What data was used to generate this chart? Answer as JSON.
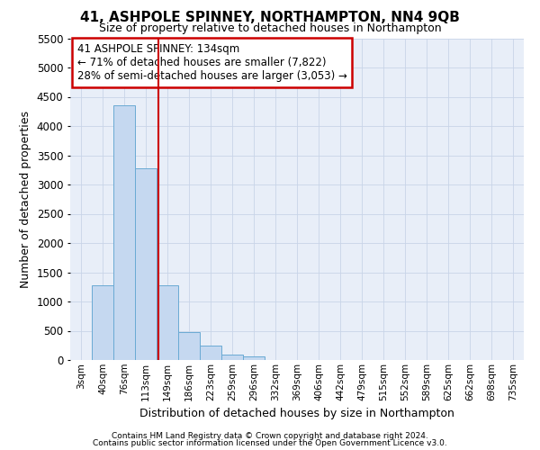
{
  "title": "41, ASHPOLE SPINNEY, NORTHAMPTON, NN4 9QB",
  "subtitle": "Size of property relative to detached houses in Northampton",
  "xlabel": "Distribution of detached houses by size in Northampton",
  "ylabel": "Number of detached properties",
  "categories": [
    "3sqm",
    "40sqm",
    "76sqm",
    "113sqm",
    "149sqm",
    "186sqm",
    "223sqm",
    "259sqm",
    "296sqm",
    "332sqm",
    "369sqm",
    "406sqm",
    "442sqm",
    "479sqm",
    "515sqm",
    "552sqm",
    "589sqm",
    "625sqm",
    "662sqm",
    "698sqm",
    "735sqm"
  ],
  "bar_values": [
    0,
    1280,
    4360,
    3280,
    1280,
    480,
    240,
    100,
    60,
    0,
    0,
    0,
    0,
    0,
    0,
    0,
    0,
    0,
    0,
    0,
    0
  ],
  "bar_color": "#c5d8f0",
  "bar_edge_color": "#6aaad4",
  "grid_color": "#c8d4e8",
  "background_color": "#e8eef8",
  "annotation_box_color": "#ffffff",
  "annotation_border_color": "#cc0000",
  "annotation_text_line1": "41 ASHPOLE SPINNEY: 134sqm",
  "annotation_text_line2": "← 71% of detached houses are smaller (7,822)",
  "annotation_text_line3": "28% of semi-detached houses are larger (3,053) →",
  "red_line_x": 3.57,
  "ylim": [
    0,
    5500
  ],
  "yticks": [
    0,
    500,
    1000,
    1500,
    2000,
    2500,
    3000,
    3500,
    4000,
    4500,
    5000,
    5500
  ],
  "footnote_line1": "Contains HM Land Registry data © Crown copyright and database right 2024.",
  "footnote_line2": "Contains public sector information licensed under the Open Government Licence v3.0."
}
